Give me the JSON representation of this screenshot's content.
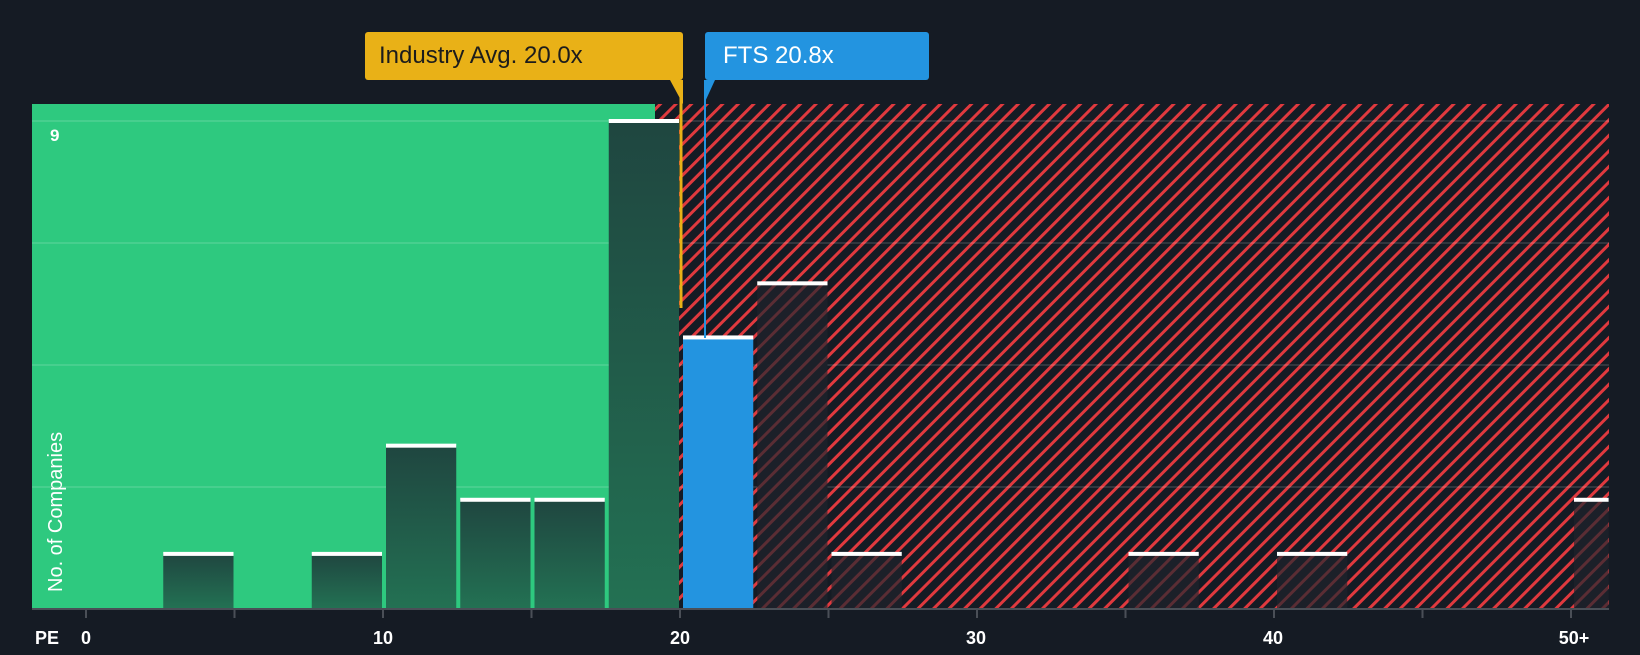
{
  "callouts": {
    "industry": "Industry Avg. 20.0x",
    "company": "FTS 20.8x"
  },
  "axis": {
    "x_title": "PE",
    "y_title": "No. of Companies",
    "y_top_label": "9",
    "x_ticks": [
      "0",
      "10",
      "20",
      "30",
      "40",
      "50+"
    ]
  },
  "colors": {
    "background": "#151b24",
    "undervalued_zone": "#2ec97f",
    "overvalued_hatch": "#e0393e",
    "industry": "#e9b117",
    "company": "#2394e0",
    "bar_dark": "#1f4a40"
  },
  "chart_data": {
    "type": "bar",
    "title": "PE Ratio distribution",
    "xlabel": "PE",
    "ylabel": "No. of Companies",
    "ylim": [
      0,
      9
    ],
    "x_ticks": [
      0,
      10,
      20,
      30,
      40,
      "50+"
    ],
    "bin_width": 2.5,
    "bins": [
      {
        "range": [
          2.5,
          5
        ],
        "count": 1
      },
      {
        "range": [
          7.5,
          10
        ],
        "count": 1
      },
      {
        "range": [
          10,
          12.5
        ],
        "count": 3
      },
      {
        "range": [
          12.5,
          15
        ],
        "count": 2
      },
      {
        "range": [
          15,
          17.5
        ],
        "count": 2
      },
      {
        "range": [
          17.5,
          20
        ],
        "count": 9
      },
      {
        "range": [
          20,
          22.5
        ],
        "count": 5,
        "highlight": "FTS"
      },
      {
        "range": [
          22.5,
          25
        ],
        "count": 6
      },
      {
        "range": [
          25,
          27.5
        ],
        "count": 1
      },
      {
        "range": [
          35,
          37.5
        ],
        "count": 1
      },
      {
        "range": [
          40,
          42.5
        ],
        "count": 1
      },
      {
        "range": [
          50,
          null
        ],
        "count": 2,
        "label": "50+"
      }
    ],
    "annotations": [
      {
        "label": "Industry Avg. 20.0x",
        "x": 20.0
      },
      {
        "label": "FTS 20.8x",
        "x": 20.8
      }
    ],
    "zones": [
      {
        "name": "undervalued",
        "from": 0,
        "to": 19.3,
        "color": "#2ec97f"
      },
      {
        "name": "overvalued",
        "from": 19.3,
        "to": "50+",
        "style": "hatched",
        "color": "#e0393e"
      }
    ],
    "grid": true
  }
}
